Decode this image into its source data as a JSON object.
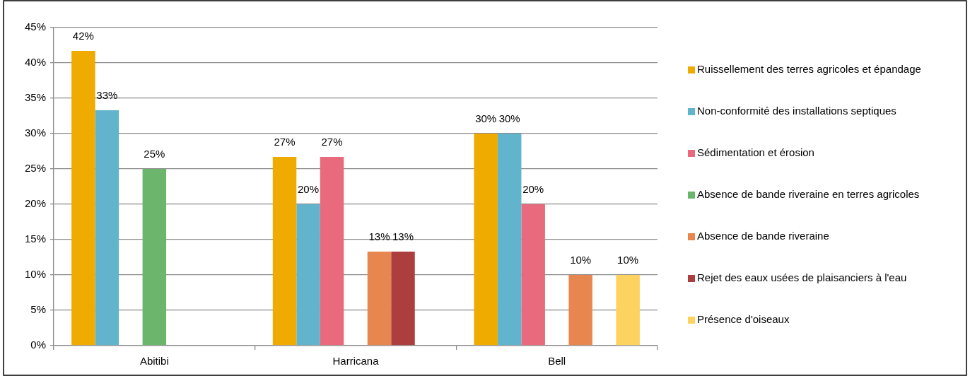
{
  "chart_data": {
    "type": "bar",
    "categories": [
      "Abitibi",
      "Harricana",
      "Bell"
    ],
    "series": [
      {
        "name": "Ruissellement des terres agricoles et épandage",
        "color": "#f0ab00",
        "values": [
          41.7,
          26.7,
          30
        ],
        "value_labels": [
          "42%",
          "27%",
          "30%"
        ]
      },
      {
        "name": "Non-conformité des installations septiques",
        "color": "#62b3cc",
        "values": [
          33.3,
          20,
          30
        ],
        "value_labels": [
          "33%",
          "20%",
          "30%"
        ]
      },
      {
        "name": "Sédimentation et érosion",
        "color": "#e86a7c",
        "values": [
          null,
          26.7,
          20
        ],
        "value_labels": [
          null,
          "27%",
          "20%"
        ]
      },
      {
        "name": "Absence de bande riveraine en terres agricoles",
        "color": "#6cb56c",
        "values": [
          25,
          null,
          null
        ],
        "value_labels": [
          "25%",
          null,
          null
        ]
      },
      {
        "name": "Absence de bande riveraine",
        "color": "#e88650",
        "values": [
          null,
          13.3,
          10
        ],
        "value_labels": [
          null,
          "13%",
          "10%"
        ]
      },
      {
        "name": "Rejet des eaux usées de plaisanciers à l'eau",
        "color": "#ad3e3e",
        "values": [
          null,
          13.3,
          null
        ],
        "value_labels": [
          null,
          "13%",
          null
        ]
      },
      {
        "name": "Présence d'oiseaux",
        "color": "#fdd25e",
        "values": [
          null,
          null,
          10
        ],
        "value_labels": [
          null,
          null,
          "10%"
        ]
      }
    ],
    "ylim": [
      0,
      45
    ],
    "yticks": [
      {
        "value": 0,
        "label": "0%"
      },
      {
        "value": 5,
        "label": "5%"
      },
      {
        "value": 10,
        "label": "10%"
      },
      {
        "value": 15,
        "label": "15%"
      },
      {
        "value": 20,
        "label": "20%"
      },
      {
        "value": 25,
        "label": "25%"
      },
      {
        "value": 30,
        "label": "30%"
      },
      {
        "value": 35,
        "label": "35%"
      },
      {
        "value": 40,
        "label": "40%"
      },
      {
        "value": 45,
        "label": "45%"
      }
    ],
    "grid": "y",
    "legend": "right"
  }
}
